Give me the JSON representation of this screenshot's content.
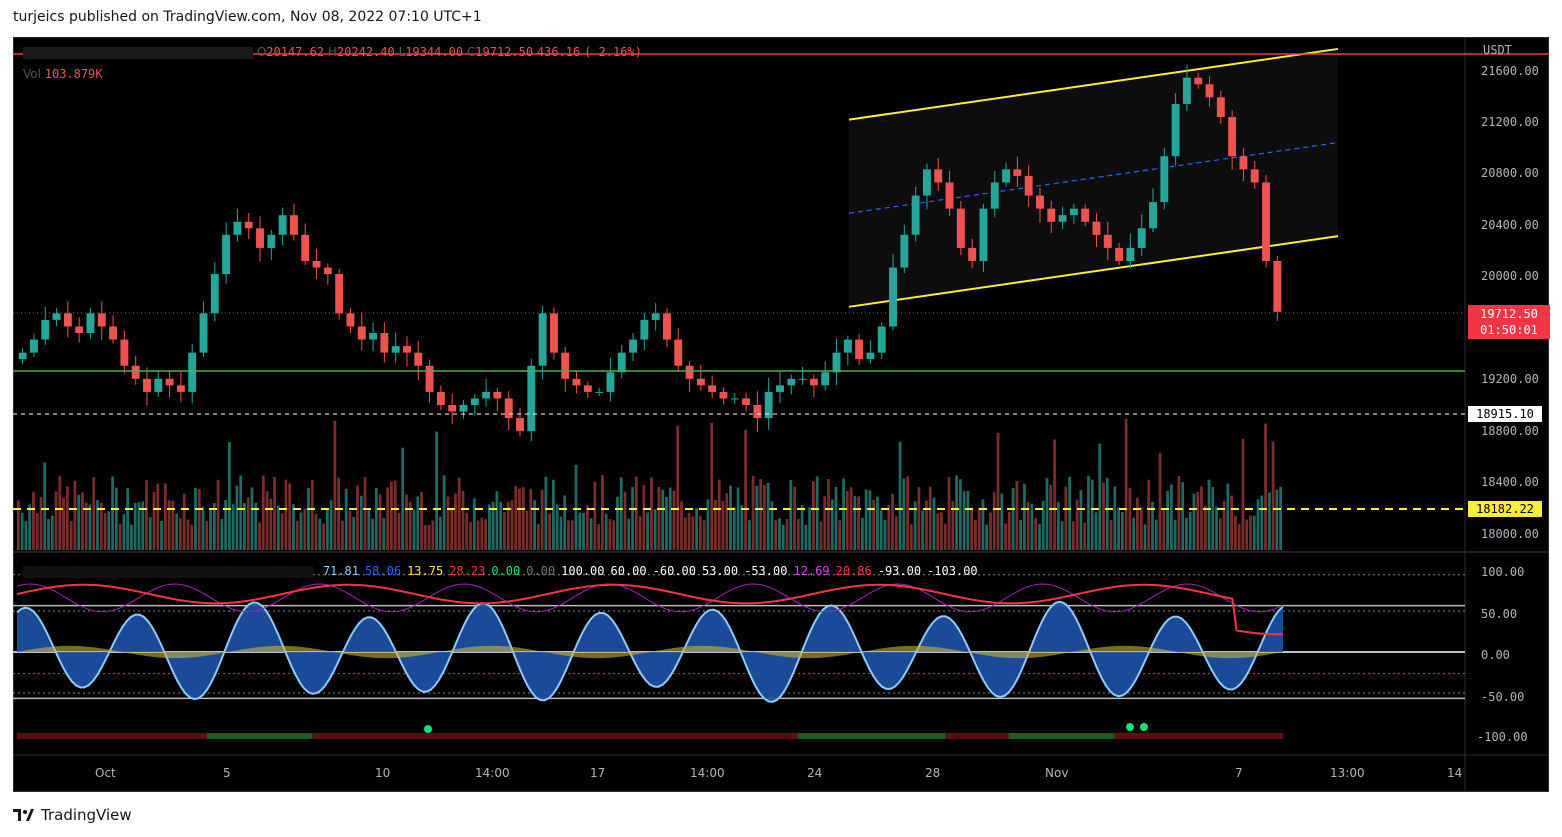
{
  "header": {
    "publisher_text": "turjeics published on TradingView.com, Nov 08, 2022 07:10 UTC+1"
  },
  "legend": {
    "ohlc": {
      "open": "20147.62",
      "high": "20242.40",
      "low": "19344.00",
      "close": "19712.50",
      "change": "436.16",
      "change_pct": "( 2.16%)"
    },
    "vol_label": "Vol",
    "vol_value": "103.879K",
    "osc_values": [
      "71.81",
      "58.06",
      "13.75",
      "28.23",
      "0.00",
      "0.00",
      "100.00",
      "60.00",
      "-60.00",
      "53.00",
      "-53.00",
      "12.69",
      "20.86",
      "-93.00",
      "-103.00"
    ]
  },
  "price_axis": {
    "currency": "USDT",
    "ticks": [
      "21600.00",
      "21200.00",
      "20800.00",
      "20400.00",
      "20000.00",
      "19200.00",
      "18800.00",
      "18400.00",
      "18000.00"
    ],
    "current_price": "19712.50",
    "countdown": "01:50:01",
    "support_label": "18915.10",
    "yellow_label": "18182.22"
  },
  "osc_axis": {
    "ticks": [
      "100.00",
      "50.00",
      "0.00",
      "-50.00",
      "-100.00"
    ]
  },
  "time_axis": {
    "labels": [
      "Oct",
      "5",
      "10",
      "14:00",
      "17",
      "14:00",
      "24",
      "28",
      "Nov",
      "7",
      "13:00",
      "14"
    ]
  },
  "footer": {
    "brand": "TradingView"
  },
  "colors": {
    "up": "#26a69a",
    "down": "#ef5350",
    "channel": "#ffeb3b",
    "support": "#4caf50",
    "accent_red": "#f23645"
  },
  "chart_data": {
    "type": "candlestick",
    "symbol_hidden": true,
    "timeframe": "1h",
    "price_ylim": [
      17900,
      21750
    ],
    "close_path": [
      19400,
      19500,
      19650,
      19700,
      19600,
      19550,
      19700,
      19600,
      19500,
      19300,
      19200,
      19100,
      19200,
      19150,
      19100,
      19400,
      19700,
      20000,
      20300,
      20400,
      20350,
      20200,
      20300,
      20450,
      20300,
      20100,
      20050,
      20000,
      19700,
      19600,
      19500,
      19550,
      19400,
      19450,
      19400,
      19300,
      19100,
      19000,
      18950,
      19000,
      19050,
      19100,
      19050,
      18900,
      18800,
      19300,
      19700,
      19400,
      19200,
      19150,
      19100,
      19100,
      19250,
      19400,
      19500,
      19650,
      19700,
      19500,
      19300,
      19200,
      19150,
      19100,
      19050,
      19050,
      19000,
      18900,
      19100,
      19150,
      19200,
      19200,
      19150,
      19250,
      19400,
      19500,
      19350,
      19400,
      19600,
      20050,
      20300,
      20600,
      20800,
      20700,
      20500,
      20200,
      20100,
      20500,
      20700,
      20800,
      20750,
      20600,
      20500,
      20400,
      20450,
      20500,
      20400,
      20300,
      20200,
      20100,
      20200,
      20350,
      20550,
      20900,
      21300,
      21500,
      21450,
      21350,
      21200,
      20900,
      20800,
      20700,
      20100,
      19712
    ],
    "channel": {
      "upper_start": 21180,
      "upper_end": 21720,
      "lower_start": 19750,
      "lower_end": 20290,
      "mid_start": 20465,
      "mid_end": 21005
    },
    "support_level": 19260,
    "levels": [
      18915.1,
      18182.22
    ],
    "osc_ylim": [
      -110,
      110
    ]
  }
}
